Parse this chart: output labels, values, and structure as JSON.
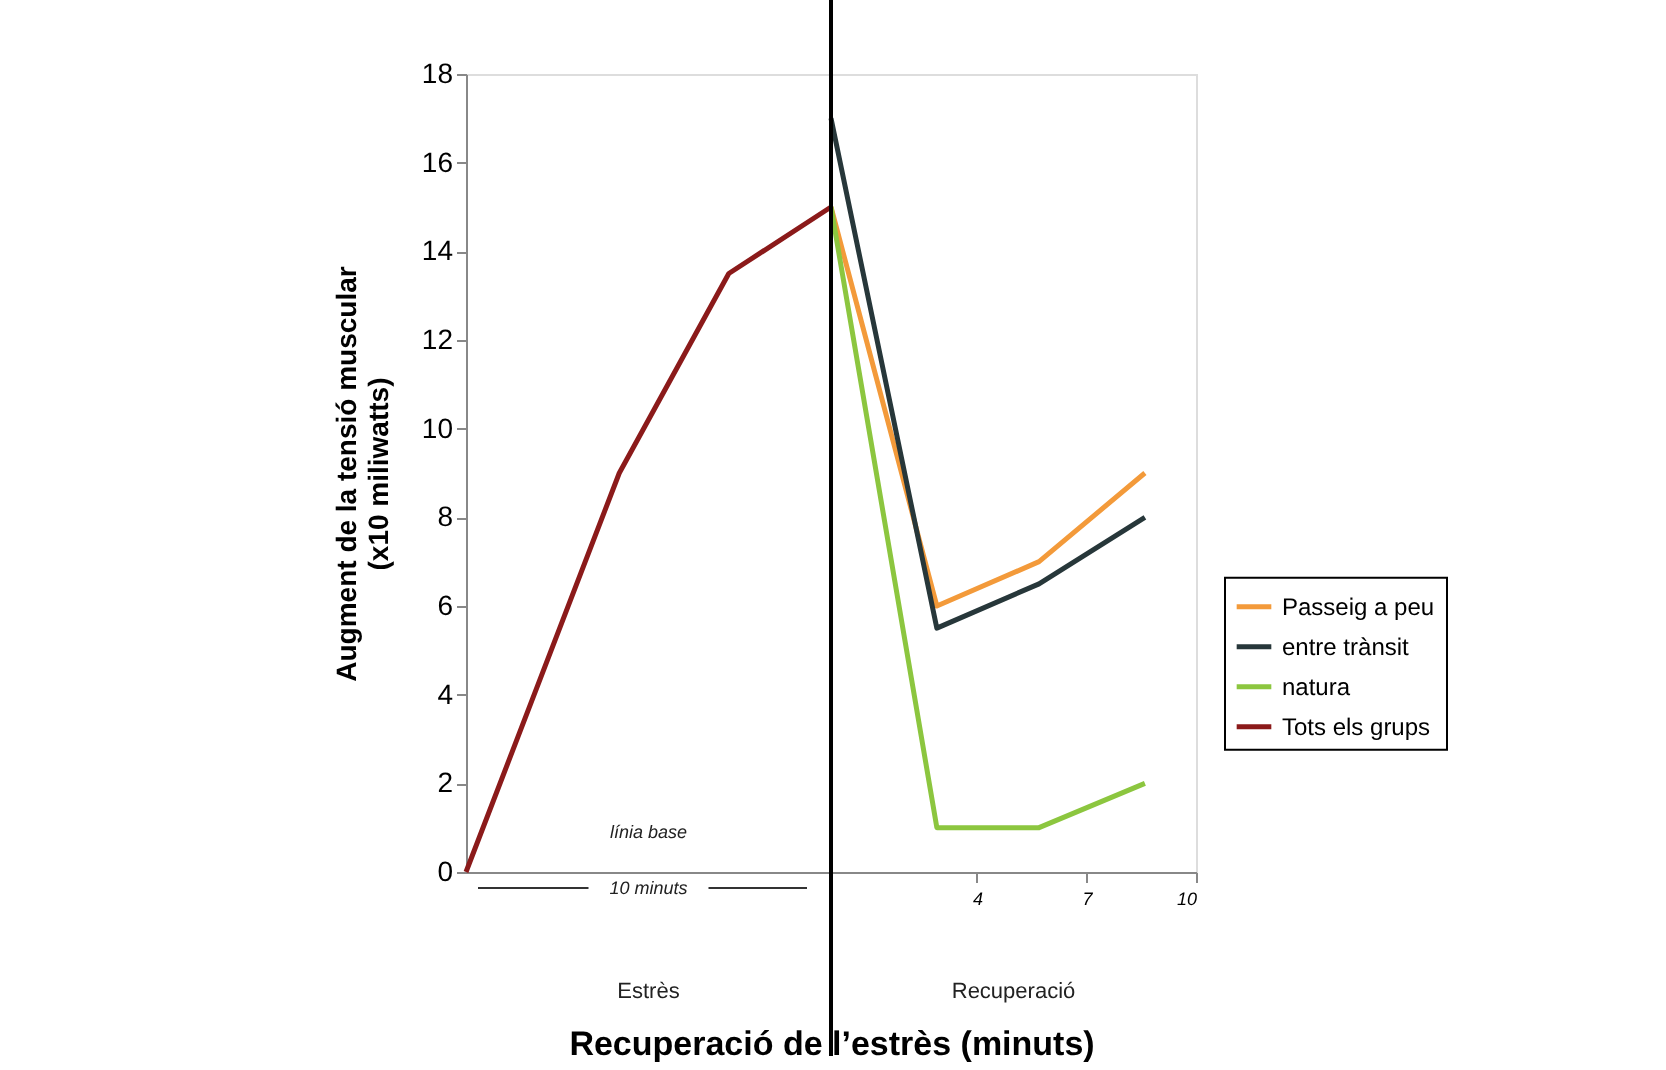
{
  "chart_data": {
    "type": "line",
    "xlabel": "Recuperació de l’estrès (minuts)",
    "ylabel": "Augment de la tensió muscular\n(x10 miliwatts)",
    "xlim": [
      -10,
      10
    ],
    "ylim": [
      0,
      18
    ],
    "xticks": [
      4,
      7,
      10
    ],
    "yticks": [
      0,
      2,
      4,
      6,
      8,
      10,
      12,
      14,
      16,
      18
    ],
    "series": [
      {
        "name": "Passeig a peu",
        "color": "#f39a3a",
        "x": [
          0,
          2.9,
          5.7,
          8.6
        ],
        "values": [
          15,
          6,
          7,
          9
        ]
      },
      {
        "name": "entre trànsit",
        "color": "#27373a",
        "x": [
          0,
          2.9,
          5.7,
          8.6
        ],
        "values": [
          17,
          5.5,
          6.5,
          8
        ]
      },
      {
        "name": "natura",
        "color": "#8cc63f",
        "x": [
          0,
          2.9,
          5.7,
          8.6
        ],
        "values": [
          15,
          1,
          1,
          2
        ]
      },
      {
        "name": "Tots els grups",
        "color": "#8b1a1a",
        "x": [
          -10,
          -5.8,
          -2.8,
          0
        ],
        "values": [
          0,
          9,
          13.5,
          15
        ]
      }
    ],
    "ref_lines": [
      {
        "axis": "x",
        "value": 0,
        "color": "#000000"
      }
    ],
    "annotations": [
      "línia base",
      "10 minuts",
      "Estrès",
      "Recuperació"
    ],
    "legend": "right",
    "grid": false,
    "marker": "none",
    "line_style": "solid"
  }
}
